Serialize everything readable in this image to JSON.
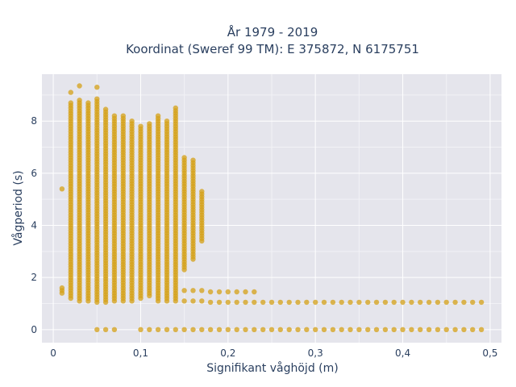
{
  "chart_data": {
    "type": "scatter",
    "title": "År 1979 - 2019",
    "subtitle": "Koordinat (Sweref 99 TM): E 375872, N 6175751",
    "xlabel": "Signifikant våghöjd (m)",
    "ylabel": "Vågperiod (s)",
    "xlim": [
      -0.013,
      0.513
    ],
    "ylim": [
      -0.5,
      9.8
    ],
    "x_ticks": [
      0,
      0.1,
      0.2,
      0.3,
      0.4,
      0.5
    ],
    "x_tick_labels": [
      "0",
      "0,1",
      "0,2",
      "0,3",
      "0,4",
      "0,5"
    ],
    "y_ticks": [
      0,
      2,
      4,
      6,
      8
    ],
    "y_tick_labels": [
      "0",
      "2",
      "4",
      "6",
      "8"
    ],
    "grid": true,
    "marker_color": "#d4a017",
    "series": [
      {
        "columns": [
          {
            "x": 0.01,
            "y_min": 1.4,
            "y_max": 1.6,
            "extra": [
              5.4
            ]
          },
          {
            "x": 0.02,
            "y_min": 1.2,
            "y_max": 8.7,
            "extra": [
              9.1
            ]
          },
          {
            "x": 0.03,
            "y_min": 1.1,
            "y_max": 8.8,
            "extra": [
              9.35
            ]
          },
          {
            "x": 0.04,
            "y_min": 1.1,
            "y_max": 8.7
          },
          {
            "x": 0.05,
            "y_min": 1.05,
            "y_max": 8.9,
            "extra": [
              9.3,
              0
            ]
          },
          {
            "x": 0.06,
            "y_min": 1.05,
            "y_max": 8.5,
            "extra": [
              0
            ]
          },
          {
            "x": 0.07,
            "y_min": 1.1,
            "y_max": 8.2,
            "extra": [
              0
            ]
          },
          {
            "x": 0.08,
            "y_min": 1.1,
            "y_max": 8.2
          },
          {
            "x": 0.09,
            "y_min": 1.1,
            "y_max": 8.0
          },
          {
            "x": 0.1,
            "y_min": 1.2,
            "y_max": 7.8,
            "extra": [
              0
            ]
          },
          {
            "x": 0.11,
            "y_min": 1.3,
            "y_max": 7.9,
            "extra": [
              0
            ]
          },
          {
            "x": 0.12,
            "y_min": 1.1,
            "y_max": 8.2,
            "extra": [
              0
            ]
          },
          {
            "x": 0.13,
            "y_min": 1.1,
            "y_max": 8.0,
            "extra": [
              0
            ]
          },
          {
            "x": 0.14,
            "y_min": 1.1,
            "y_max": 8.5,
            "extra": [
              0
            ]
          },
          {
            "x": 0.15,
            "y_min": 2.3,
            "y_max": 6.6,
            "extra": [
              1.1,
              1.5,
              0
            ]
          },
          {
            "x": 0.16,
            "y_min": 2.7,
            "y_max": 6.5,
            "extra": [
              1.1,
              1.5,
              0
            ]
          },
          {
            "x": 0.17,
            "y_min": 3.4,
            "y_max": 5.3,
            "extra": [
              1.1,
              1.5,
              0
            ]
          }
        ],
        "bands": [
          {
            "x_from": 0.18,
            "x_to": 0.23,
            "y": 1.45
          },
          {
            "x_from": 0.18,
            "x_to": 0.49,
            "y": 1.05
          },
          {
            "x_from": 0.18,
            "x_to": 0.49,
            "y": 0
          }
        ]
      }
    ]
  }
}
